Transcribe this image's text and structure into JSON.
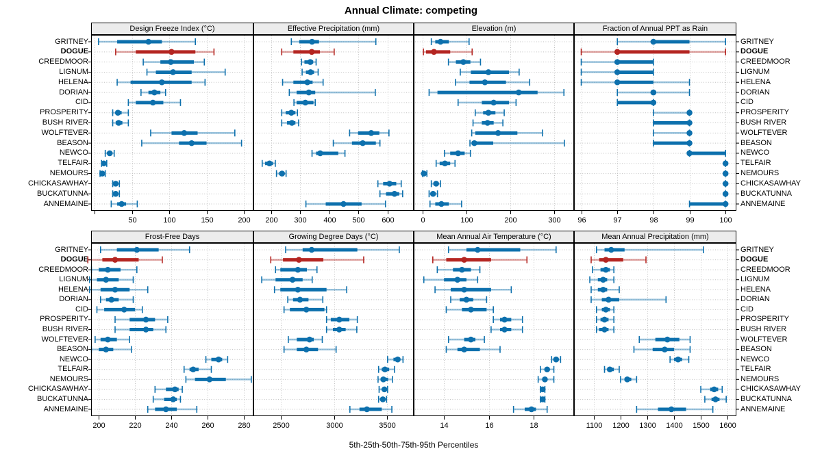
{
  "title": "Annual Climate: competing",
  "caption": "5th-25th-50th-75th-95th Percentiles",
  "colors": {
    "normal": "#0d70ad",
    "normal_light": "rgba(13,112,173,0.42)",
    "highlight": "#b42521",
    "highlight_light": "rgba(180,37,33,0.42)",
    "grid": "#c2c2c2",
    "strip_bg": "#ececec",
    "border": "#000000"
  },
  "chart_data": {
    "type": "dotplot-percentile-ranges",
    "percentile_labels": [
      "5th",
      "25th",
      "50th",
      "75th",
      "95th"
    ],
    "legend_note": "median dot, 25th-75th thick bar, 5th-95th whisker with end caps",
    "highlight_row": "DOGUE",
    "rows": [
      "GRITNEY",
      "DOGUE",
      "CREEDMOOR",
      "LIGNUM",
      "HELENA",
      "DORIAN",
      "CID",
      "PROSPERITY",
      "BUSH RIVER",
      "WOLFTEVER",
      "BEASON",
      "NEWCO",
      "TELFAIR",
      "NEMOURS",
      "CHICKASAWHAY",
      "BUCKATUNNA",
      "ANNEMAINE"
    ],
    "panels": [
      {
        "title": "Design Freeze Index (°C)",
        "grid_row": "top",
        "domain": [
          -5,
          213
        ],
        "ticks": [
          0,
          50,
          100,
          150,
          200
        ],
        "tick_labels": [
          "",
          "50",
          "100",
          "150",
          "200"
        ],
        "values": [
          [
            5,
            30,
            72,
            90,
            135
          ],
          [
            28,
            55,
            103,
            135,
            160
          ],
          [
            65,
            88,
            102,
            133,
            147
          ],
          [
            70,
            82,
            105,
            130,
            175
          ],
          [
            30,
            48,
            90,
            130,
            148
          ],
          [
            62,
            72,
            80,
            88,
            95
          ],
          [
            45,
            55,
            78,
            92,
            115
          ],
          [
            24,
            28,
            31,
            36,
            45
          ],
          [
            24,
            28,
            32,
            37,
            45
          ],
          [
            75,
            103,
            120,
            138,
            188
          ],
          [
            63,
            113,
            130,
            150,
            197
          ],
          [
            14,
            17,
            20,
            23,
            26
          ],
          [
            9,
            11,
            12,
            14,
            16
          ],
          [
            7,
            9,
            10,
            12,
            14
          ],
          [
            24,
            26,
            28,
            30,
            33
          ],
          [
            24,
            26,
            28,
            31,
            33
          ],
          [
            22,
            30,
            36,
            42,
            57
          ]
        ]
      },
      {
        "title": "Effective Precipitation (mm)",
        "grid_row": "top",
        "domain": [
          140,
          690
        ],
        "ticks": [
          200,
          300,
          400,
          500,
          600
        ],
        "tick_labels": [
          "200",
          "300",
          "400",
          "500",
          "600"
        ],
        "values": [
          [
            270,
            297,
            341,
            365,
            560
          ],
          [
            237,
            277,
            340,
            368,
            417
          ],
          [
            305,
            315,
            335,
            345,
            355
          ],
          [
            307,
            320,
            336,
            348,
            362
          ],
          [
            240,
            277,
            325,
            343,
            379
          ],
          [
            263,
            288,
            330,
            352,
            558
          ],
          [
            279,
            288,
            318,
            346,
            352
          ],
          [
            237,
            251,
            270,
            284,
            291
          ],
          [
            237,
            255,
            272,
            284,
            295
          ],
          [
            470,
            499,
            544,
            572,
            605
          ],
          [
            414,
            478,
            515,
            560,
            574
          ],
          [
            341,
            355,
            369,
            431,
            454
          ],
          [
            170,
            180,
            195,
            207,
            215
          ],
          [
            219,
            228,
            238,
            246,
            252
          ],
          [
            567,
            585,
            607,
            630,
            647
          ],
          [
            574,
            595,
            624,
            640,
            652
          ],
          [
            320,
            388,
            449,
            511,
            593
          ]
        ]
      },
      {
        "title": "Elevation (m)",
        "grid_row": "top",
        "domain": [
          -20,
          345
        ],
        "ticks": [
          0,
          100,
          200,
          300
        ],
        "tick_labels": [
          "0",
          "100",
          "200",
          "300"
        ],
        "values": [
          [
            20,
            29,
            41,
            60,
            106
          ],
          [
            2,
            8,
            26,
            63,
            113
          ],
          [
            59,
            76,
            93,
            109,
            132
          ],
          [
            86,
            110,
            150,
            197,
            220
          ],
          [
            75,
            107,
            142,
            190,
            244
          ],
          [
            15,
            34,
            219,
            262,
            322
          ],
          [
            81,
            135,
            162,
            197,
            213
          ],
          [
            120,
            138,
            150,
            166,
            186
          ],
          [
            115,
            135,
            148,
            162,
            183
          ],
          [
            112,
            120,
            172,
            216,
            273
          ],
          [
            108,
            112,
            118,
            161,
            323
          ],
          [
            50,
            63,
            81,
            96,
            109
          ],
          [
            31,
            39,
            51,
            63,
            74
          ],
          [
            0,
            1,
            3,
            6,
            10
          ],
          [
            20,
            25,
            31,
            36,
            41
          ],
          [
            15,
            20,
            24,
            29,
            34
          ],
          [
            17,
            29,
            43,
            60,
            89
          ]
        ]
      },
      {
        "title": "Fraction of Annual PPT as Rain",
        "grid_row": "top",
        "domain": [
          95.8,
          100.3
        ],
        "ticks": [
          96,
          97,
          98,
          99,
          100
        ],
        "tick_labels": [
          "96",
          "97",
          "98",
          "99",
          "100"
        ],
        "values": [
          [
            97,
            98,
            98,
            99,
            100
          ],
          [
            96,
            97,
            97,
            99,
            100
          ],
          [
            96,
            97,
            97,
            98,
            98
          ],
          [
            96,
            97,
            97,
            98,
            98
          ],
          [
            96,
            97,
            97,
            98,
            99
          ],
          [
            97,
            98,
            98,
            98,
            99
          ],
          [
            97,
            97,
            98,
            98,
            98
          ],
          [
            98,
            99,
            99,
            99,
            99
          ],
          [
            98,
            98,
            99,
            99,
            99
          ],
          [
            98,
            99,
            99,
            99,
            99
          ],
          [
            98,
            98,
            99,
            99,
            99
          ],
          [
            99,
            99,
            99,
            100,
            100
          ],
          [
            100,
            100,
            100,
            100,
            100
          ],
          [
            100,
            100,
            100,
            100,
            100
          ],
          [
            100,
            100,
            100,
            100,
            100
          ],
          [
            100,
            100,
            100,
            100,
            100
          ],
          [
            99,
            99,
            100,
            100,
            100
          ]
        ]
      },
      {
        "title": "Frost-Free Days",
        "grid_row": "bottom",
        "domain": [
          195.8,
          285.2
        ],
        "ticks": [
          200,
          220,
          240,
          260,
          280
        ],
        "tick_labels": [
          "200",
          "220",
          "240",
          "260",
          "280"
        ],
        "values": [
          [
            201,
            210,
            221,
            233,
            250
          ],
          [
            194,
            202,
            209,
            222,
            235
          ],
          [
            196,
            200,
            205,
            212,
            221
          ],
          [
            195,
            199,
            204,
            211,
            219
          ],
          [
            195,
            201,
            209,
            217,
            227
          ],
          [
            201,
            204,
            207,
            211,
            219
          ],
          [
            199,
            203,
            214,
            220,
            224
          ],
          [
            209,
            217,
            226,
            231,
            238
          ],
          [
            209,
            217,
            226,
            230,
            237
          ],
          [
            198,
            201,
            205,
            210,
            217
          ],
          [
            196,
            200,
            204,
            208,
            218
          ],
          [
            259,
            262,
            266,
            268,
            271
          ],
          [
            247,
            250,
            252,
            255,
            262
          ],
          [
            248,
            253,
            261,
            270,
            284
          ],
          [
            231,
            237,
            242,
            244,
            246
          ],
          [
            230,
            236,
            241,
            243,
            245
          ],
          [
            227,
            231,
            237,
            243,
            254
          ]
        ]
      },
      {
        "title": "Growing Degree Days (°C)",
        "grid_row": "bottom",
        "domain": [
          2242,
          3751
        ],
        "ticks": [
          2500,
          3000,
          3500
        ],
        "tick_labels": [
          "2500",
          "3000",
          "3500"
        ],
        "values": [
          [
            2545,
            2705,
            2790,
            3220,
            3615
          ],
          [
            2405,
            2520,
            2670,
            2900,
            3280
          ],
          [
            2450,
            2495,
            2660,
            2745,
            2840
          ],
          [
            2320,
            2450,
            2610,
            2705,
            2795
          ],
          [
            2440,
            2495,
            2660,
            2930,
            3120
          ],
          [
            2565,
            2615,
            2680,
            2760,
            2895
          ],
          [
            2530,
            2585,
            2740,
            2910,
            2930
          ],
          [
            2930,
            2970,
            3050,
            3145,
            3220
          ],
          [
            2930,
            2990,
            3050,
            3110,
            3215
          ],
          [
            2570,
            2650,
            2770,
            2810,
            2890
          ],
          [
            2530,
            2650,
            2740,
            2850,
            3020
          ],
          [
            3505,
            3560,
            3600,
            3625,
            3650
          ],
          [
            3420,
            3450,
            3480,
            3520,
            3570
          ],
          [
            3415,
            3440,
            3465,
            3510,
            3550
          ],
          [
            3425,
            3455,
            3475,
            3490,
            3505
          ],
          [
            3420,
            3445,
            3460,
            3480,
            3495
          ],
          [
            3150,
            3240,
            3310,
            3450,
            3545
          ]
        ]
      },
      {
        "title": "Mean Annual Air Temperature (°C)",
        "grid_row": "bottom",
        "domain": [
          12.65,
          19.8
        ],
        "ticks": [
          14,
          16,
          18
        ],
        "tick_labels": [
          "14",
          "16",
          "18"
        ],
        "values": [
          [
            14.2,
            15.0,
            15.5,
            17.4,
            19.0
          ],
          [
            13.5,
            14.1,
            14.9,
            16.1,
            17.7
          ],
          [
            13.7,
            14.4,
            14.8,
            15.2,
            15.6
          ],
          [
            13.1,
            14.0,
            14.6,
            15.0,
            15.5
          ],
          [
            13.6,
            14.3,
            14.9,
            16.1,
            17.0
          ],
          [
            14.3,
            14.7,
            15.0,
            15.3,
            15.9
          ],
          [
            14.1,
            14.8,
            15.2,
            15.9,
            16.2
          ],
          [
            16.2,
            16.5,
            16.7,
            17.0,
            17.5
          ],
          [
            16.1,
            16.5,
            16.7,
            17.0,
            17.5
          ],
          [
            14.2,
            14.9,
            15.2,
            15.4,
            15.8
          ],
          [
            14.1,
            14.6,
            14.9,
            15.6,
            16.5
          ],
          [
            18.8,
            18.9,
            19.0,
            19.1,
            19.2
          ],
          [
            18.3,
            18.5,
            18.6,
            18.7,
            18.9
          ],
          [
            18.2,
            18.4,
            18.5,
            18.6,
            18.9
          ],
          [
            18.3,
            18.35,
            18.4,
            18.45,
            18.5
          ],
          [
            18.3,
            18.35,
            18.4,
            18.45,
            18.5
          ],
          [
            17.1,
            17.6,
            17.9,
            18.1,
            18.6
          ]
        ]
      },
      {
        "title": "Mean Annual Precipitation (mm)",
        "grid_row": "bottom",
        "domain": [
          1026,
          1633
        ],
        "ticks": [
          1100,
          1200,
          1300,
          1400,
          1500,
          1600
        ],
        "tick_labels": [
          "1100",
          "1200",
          "1300",
          "1400",
          "1500",
          "1600"
        ],
        "values": [
          [
            1110,
            1140,
            1165,
            1215,
            1510
          ],
          [
            1090,
            1120,
            1145,
            1210,
            1295
          ],
          [
            1095,
            1125,
            1145,
            1160,
            1175
          ],
          [
            1085,
            1115,
            1135,
            1150,
            1175
          ],
          [
            1090,
            1115,
            1135,
            1150,
            1195
          ],
          [
            1090,
            1130,
            1155,
            1195,
            1370
          ],
          [
            1110,
            1130,
            1145,
            1160,
            1175
          ],
          [
            1110,
            1125,
            1140,
            1155,
            1175
          ],
          [
            1110,
            1120,
            1140,
            1155,
            1175
          ],
          [
            1270,
            1330,
            1375,
            1420,
            1460
          ],
          [
            1250,
            1320,
            1365,
            1400,
            1460
          ],
          [
            1385,
            1400,
            1415,
            1430,
            1455
          ],
          [
            1140,
            1150,
            1160,
            1175,
            1195
          ],
          [
            1200,
            1215,
            1225,
            1240,
            1260
          ],
          [
            1500,
            1535,
            1550,
            1565,
            1580
          ],
          [
            1515,
            1540,
            1555,
            1570,
            1595
          ],
          [
            1260,
            1340,
            1390,
            1445,
            1545
          ]
        ]
      }
    ]
  }
}
